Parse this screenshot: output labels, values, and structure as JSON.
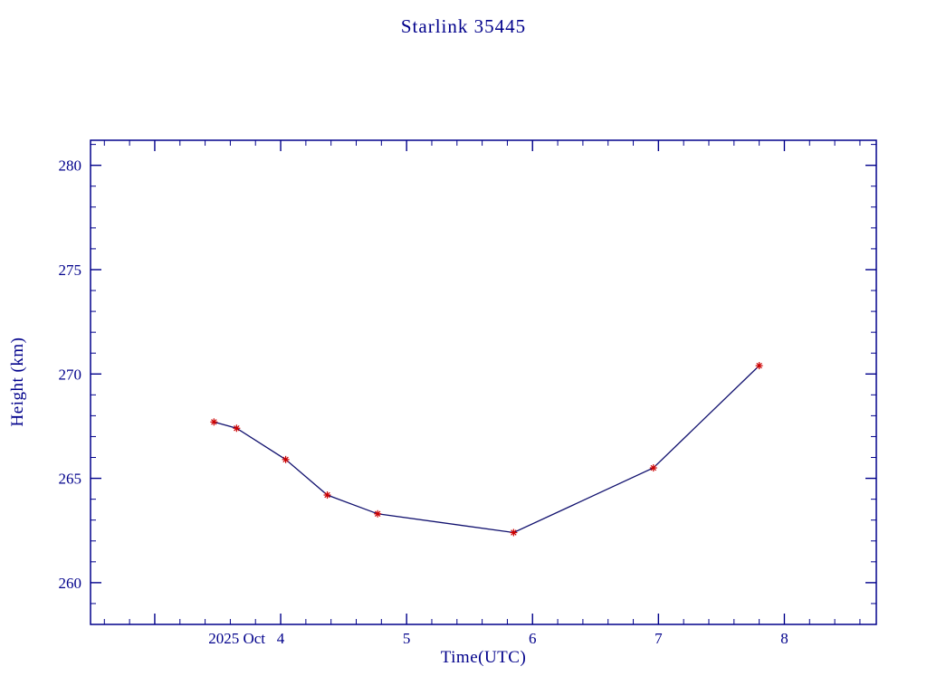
{
  "page": {
    "background_color": "#ffffff"
  },
  "chart_data": {
    "type": "line",
    "title": "Starlink 35445",
    "xlabel": "Time(UTC)",
    "ylabel": "Height (km)",
    "x_prefix_label": "2025 Oct",
    "xlim": [
      2.49,
      8.73
    ],
    "ylim": [
      258.0,
      281.2
    ],
    "x_major_ticks": [
      3,
      4,
      5,
      6,
      7,
      8
    ],
    "x_tick_labels": [
      "",
      "4",
      "5",
      "6",
      "7",
      "8"
    ],
    "x_minor_step": 0.2,
    "y_major_ticks": [
      260,
      265,
      270,
      275,
      280
    ],
    "y_tick_labels": [
      "260",
      "265",
      "270",
      "275",
      "280"
    ],
    "y_minor_step": 1,
    "series": [
      {
        "name": "height_km",
        "x": [
          3.47,
          3.65,
          4.04,
          4.37,
          4.77,
          5.85,
          6.96,
          7.8
        ],
        "y": [
          267.7,
          267.4,
          265.9,
          264.2,
          263.3,
          262.4,
          265.5,
          270.4
        ],
        "marker": "asterisk"
      }
    ],
    "grid": false,
    "legend": "none",
    "axis_color": "#00008B",
    "text_color": "#00008B",
    "line_color": "#10106e",
    "marker_color": "#cc0000"
  }
}
